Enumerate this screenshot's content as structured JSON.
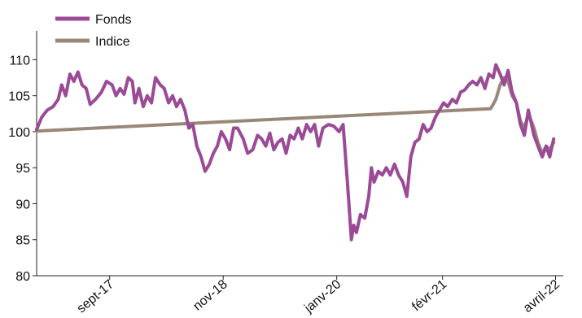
{
  "chart_data": {
    "type": "line",
    "title": "",
    "xlabel": "",
    "ylabel": "",
    "ylim": [
      80,
      114
    ],
    "yticks": [
      80,
      85,
      90,
      95,
      100,
      105,
      110
    ],
    "xlim": [
      "2016-12-01",
      "2022-04-30"
    ],
    "xticks": [
      {
        "date": "2017-09-01",
        "label": "sept-17"
      },
      {
        "date": "2018-11-01",
        "label": "nov-18"
      },
      {
        "date": "2020-01-01",
        "label": "janv-20"
      },
      {
        "date": "2021-02-01",
        "label": "févr-21"
      },
      {
        "date": "2022-04-01",
        "label": "avril-22"
      }
    ],
    "grid": false,
    "legend_position": "top-left",
    "series": [
      {
        "name": "Fonds",
        "color": "#9b4a96",
        "points": [
          [
            "2016-12-01",
            100.3
          ],
          [
            "2016-12-20",
            102.0
          ],
          [
            "2017-01-10",
            103.0
          ],
          [
            "2017-02-01",
            103.5
          ],
          [
            "2017-02-20",
            104.5
          ],
          [
            "2017-03-05",
            106.5
          ],
          [
            "2017-03-20",
            105.0
          ],
          [
            "2017-04-05",
            108.0
          ],
          [
            "2017-04-20",
            107.0
          ],
          [
            "2017-05-05",
            108.3
          ],
          [
            "2017-05-20",
            106.5
          ],
          [
            "2017-06-05",
            106.0
          ],
          [
            "2017-06-20",
            103.8
          ],
          [
            "2017-07-10",
            104.5
          ],
          [
            "2017-08-01",
            105.5
          ],
          [
            "2017-08-20",
            107.0
          ],
          [
            "2017-09-10",
            106.5
          ],
          [
            "2017-09-25",
            105.0
          ],
          [
            "2017-10-10",
            106.0
          ],
          [
            "2017-10-25",
            105.2
          ],
          [
            "2017-11-10",
            107.5
          ],
          [
            "2017-11-25",
            107.0
          ],
          [
            "2017-12-05",
            104.0
          ],
          [
            "2017-12-20",
            106.0
          ],
          [
            "2018-01-05",
            103.5
          ],
          [
            "2018-01-20",
            105.0
          ],
          [
            "2018-02-05",
            104.0
          ],
          [
            "2018-02-20",
            107.5
          ],
          [
            "2018-03-10",
            106.5
          ],
          [
            "2018-03-25",
            106.0
          ],
          [
            "2018-04-10",
            104.0
          ],
          [
            "2018-04-25",
            105.0
          ],
          [
            "2018-05-10",
            103.5
          ],
          [
            "2018-05-25",
            104.5
          ],
          [
            "2018-06-10",
            103.0
          ],
          [
            "2018-06-25",
            100.5
          ],
          [
            "2018-07-10",
            101.0
          ],
          [
            "2018-07-25",
            98.0
          ],
          [
            "2018-08-10",
            96.5
          ],
          [
            "2018-08-25",
            94.5
          ],
          [
            "2018-09-10",
            95.5
          ],
          [
            "2018-09-25",
            97.0
          ],
          [
            "2018-10-10",
            98.0
          ],
          [
            "2018-10-25",
            100.0
          ],
          [
            "2018-11-10",
            99.0
          ],
          [
            "2018-11-25",
            97.5
          ],
          [
            "2018-12-10",
            100.5
          ],
          [
            "2018-12-25",
            100.5
          ],
          [
            "2019-01-15",
            99.0
          ],
          [
            "2019-02-01",
            97.0
          ],
          [
            "2019-02-20",
            97.5
          ],
          [
            "2019-03-10",
            99.5
          ],
          [
            "2019-03-25",
            99.0
          ],
          [
            "2019-04-10",
            98.0
          ],
          [
            "2019-04-25",
            99.8
          ],
          [
            "2019-05-10",
            97.5
          ],
          [
            "2019-05-25",
            98.5
          ],
          [
            "2019-06-10",
            99.0
          ],
          [
            "2019-06-25",
            97.0
          ],
          [
            "2019-07-10",
            99.5
          ],
          [
            "2019-07-25",
            99.0
          ],
          [
            "2019-08-10",
            100.5
          ],
          [
            "2019-08-25",
            99.0
          ],
          [
            "2019-09-10",
            101.0
          ],
          [
            "2019-09-25",
            100.0
          ],
          [
            "2019-10-10",
            101.0
          ],
          [
            "2019-10-25",
            98.0
          ],
          [
            "2019-11-10",
            100.5
          ],
          [
            "2019-12-01",
            101.0
          ],
          [
            "2019-12-20",
            100.8
          ],
          [
            "2020-01-10",
            100.0
          ],
          [
            "2020-01-25",
            101.0
          ],
          [
            "2020-02-10",
            93.0
          ],
          [
            "2020-02-25",
            85.0
          ],
          [
            "2020-03-05",
            87.0
          ],
          [
            "2020-03-15",
            86.0
          ],
          [
            "2020-03-30",
            88.5
          ],
          [
            "2020-04-15",
            88.0
          ],
          [
            "2020-04-30",
            91.0
          ],
          [
            "2020-05-10",
            95.0
          ],
          [
            "2020-05-20",
            93.0
          ],
          [
            "2020-06-05",
            94.5
          ],
          [
            "2020-06-20",
            94.0
          ],
          [
            "2020-07-05",
            95.0
          ],
          [
            "2020-07-20",
            94.0
          ],
          [
            "2020-08-05",
            95.5
          ],
          [
            "2020-08-20",
            94.0
          ],
          [
            "2020-09-05",
            93.0
          ],
          [
            "2020-09-20",
            91.0
          ],
          [
            "2020-10-05",
            96.5
          ],
          [
            "2020-10-20",
            98.5
          ],
          [
            "2020-11-05",
            99.0
          ],
          [
            "2020-11-20",
            101.0
          ],
          [
            "2020-12-05",
            100.0
          ],
          [
            "2020-12-20",
            100.5
          ],
          [
            "2021-01-05",
            102.0
          ],
          [
            "2021-01-20",
            103.0
          ],
          [
            "2021-02-05",
            104.0
          ],
          [
            "2021-02-20",
            103.5
          ],
          [
            "2021-03-10",
            104.5
          ],
          [
            "2021-03-25",
            104.0
          ],
          [
            "2021-04-10",
            105.5
          ],
          [
            "2021-04-25",
            105.8
          ],
          [
            "2021-05-10",
            106.5
          ],
          [
            "2021-05-25",
            107.0
          ],
          [
            "2021-06-10",
            106.5
          ],
          [
            "2021-06-25",
            107.5
          ],
          [
            "2021-07-10",
            106.0
          ],
          [
            "2021-07-25",
            108.0
          ],
          [
            "2021-08-10",
            107.5
          ],
          [
            "2021-08-20",
            109.3
          ],
          [
            "2021-09-05",
            108.0
          ],
          [
            "2021-09-20",
            106.5
          ],
          [
            "2021-10-05",
            108.5
          ],
          [
            "2021-10-20",
            105.5
          ],
          [
            "2021-11-05",
            104.0
          ],
          [
            "2021-11-20",
            101.0
          ],
          [
            "2021-12-05",
            99.5
          ],
          [
            "2021-12-20",
            103.0
          ],
          [
            "2022-01-10",
            99.5
          ],
          [
            "2022-01-25",
            98.0
          ],
          [
            "2022-02-10",
            96.5
          ],
          [
            "2022-02-25",
            98.0
          ],
          [
            "2022-03-10",
            96.5
          ],
          [
            "2022-03-25",
            99.0
          ]
        ]
      },
      {
        "name": "Indice",
        "color": "#998878",
        "points": [
          [
            "2016-12-01",
            100.1
          ],
          [
            "2021-08-01",
            103.2
          ],
          [
            "2021-08-20",
            104.5
          ],
          [
            "2021-09-05",
            106.5
          ],
          [
            "2021-09-20",
            107.5
          ],
          [
            "2021-10-05",
            107.0
          ],
          [
            "2021-10-20",
            105.0
          ],
          [
            "2021-11-05",
            104.0
          ],
          [
            "2021-11-20",
            101.5
          ],
          [
            "2021-12-05",
            100.5
          ],
          [
            "2021-12-20",
            102.5
          ],
          [
            "2022-01-10",
            100.5
          ],
          [
            "2022-01-25",
            98.5
          ],
          [
            "2022-02-10",
            97.0
          ],
          [
            "2022-02-25",
            98.0
          ],
          [
            "2022-03-10",
            97.5
          ],
          [
            "2022-03-25",
            98.5
          ]
        ]
      }
    ]
  }
}
